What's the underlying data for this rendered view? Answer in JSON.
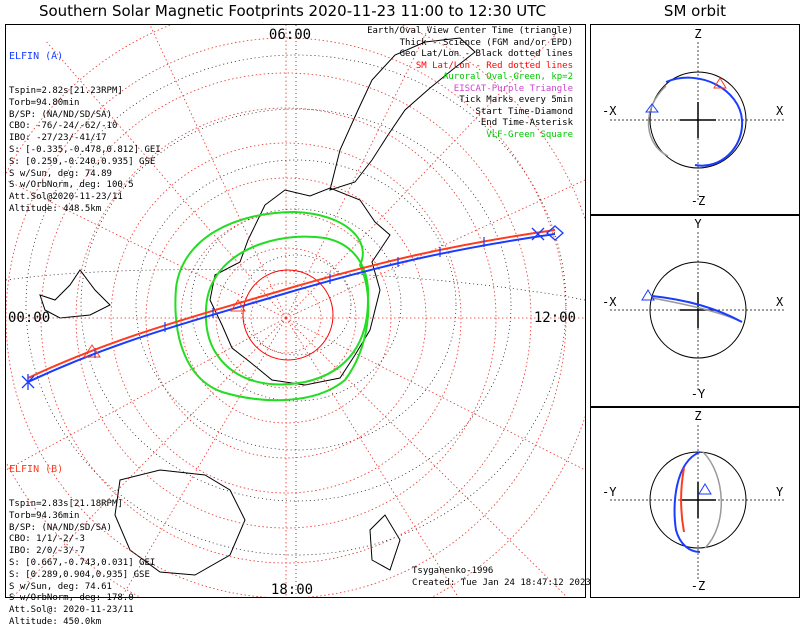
{
  "title": "Southern Solar Magnetic Footprints 2020-11-23 11:00 to 12:30 UTC",
  "orbit_title": "SM orbit",
  "map": {
    "hour_labels": {
      "top": "06:00",
      "left": "00:00",
      "right": "12:00",
      "bottom": "18:00"
    }
  },
  "elfin_a": {
    "name": "ELFIN (A)",
    "color": "#1a3cff",
    "lines": [
      "Tspin=2.82s[21.23RPM]",
      "Torb=94.80min",
      "B/SP: (NA/ND/SD/SA)",
      "CBO: -76/-24/-62/-10",
      "IBO: -27/23/-41/17",
      "S: [-0.335,-0.478,0.812] GEI",
      "S: [0.259,-0.240,0.935] GSE",
      "S w/Sun, deg: 74.89",
      "S w/OrbNorm, deg: 100.5",
      "Att.Sol@2020-11-23/11",
      "Altitude: 448.5km"
    ]
  },
  "elfin_b": {
    "name": "ELFIN (B)",
    "color": "#ff3b1f",
    "lines": [
      "Tspin=2.83s[21.18RPM]",
      "Torb=94.36min",
      "B/SP: (NA/ND/SD/SA)",
      "CBO: 1/1/-2/-3",
      "IBO: 2/0/-3/-7",
      "S: [0.667,-0.743,0.031] GEI",
      "S: [0.289,0.904,0.935] GSE",
      "S w/Sun, deg: 74.61",
      "S w/OrbNorm, deg: 178.0",
      "Att.Sol@: 2020-11-23/11",
      "Altitude: 450.0km"
    ]
  },
  "legend": [
    {
      "text": "Earth/Oval View Center Time (triangle)",
      "color": "#000000"
    },
    {
      "text": "Thick - Science (FGM and/or EPD)",
      "color": "#000000"
    },
    {
      "text": "Geo Lat/Lon - Black dotted lines",
      "color": "#000000"
    },
    {
      "text": "SM Lat/Lon - Red dotted lines",
      "color": "#ff0000"
    },
    {
      "text": "Auroral Oval-Green, kp=2",
      "color": "#00c800"
    },
    {
      "text": "EISCAT-Purple Triangle",
      "color": "#cc44cc"
    },
    {
      "text": "Tick Marks every 5min",
      "color": "#000000"
    },
    {
      "text": "Start Time-Diamond",
      "color": "#000000"
    },
    {
      "text": "End Time-Asterisk",
      "color": "#000000"
    },
    {
      "text": "VLF-Green Square",
      "color": "#00c800"
    }
  ],
  "credits": {
    "author": "Tsyganenko-1996",
    "created": "Created: Tue Jan 24 18:47:12 2023"
  },
  "panels": {
    "xz": {
      "top": "Z",
      "bottom": "-Z",
      "left": "-X",
      "right": "X"
    },
    "xy": {
      "top": "Y",
      "bottom": "-Y",
      "left": "-X",
      "right": "X"
    },
    "yz": {
      "top": "Z",
      "bottom": "-Z",
      "left": "-Y",
      "right": "Y"
    }
  }
}
